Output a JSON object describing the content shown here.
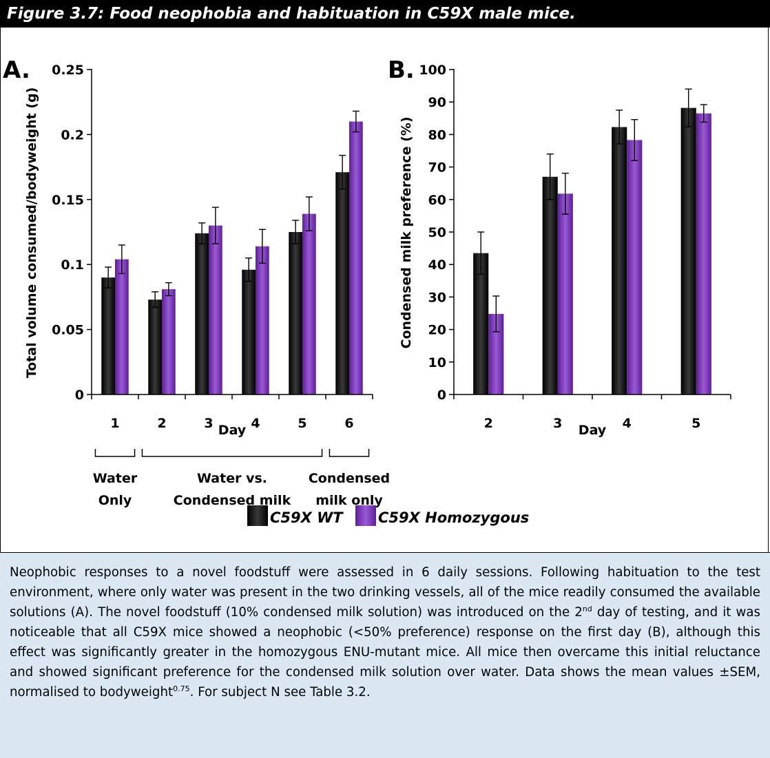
{
  "figure_title": "Figure 3.7: Food neophobia and habituation in C59X male mice.",
  "colors": {
    "wt": "#111111",
    "homozygous": "#7a2fb8",
    "caption_bg": "#dbe8f4"
  },
  "legend": {
    "wt_label": "C59X WT",
    "hom_label": "C59X Homozygous"
  },
  "chart_data": [
    {
      "type": "bar",
      "panel_label": "A.",
      "title": "",
      "xlabel": "Day",
      "ylabel": "Total volume consumed/bodyweight (g)",
      "ylim": [
        0,
        0.25
      ],
      "y_ticks": [
        0,
        0.05,
        0.1,
        0.15,
        0.2,
        0.25
      ],
      "y_tick_labels": [
        "0",
        "0.05",
        "0.1",
        "0.15",
        "0.2",
        "0.25"
      ],
      "categories": [
        "1",
        "2",
        "3",
        "4",
        "5",
        "6"
      ],
      "series": [
        {
          "name": "C59X WT",
          "values": [
            0.09,
            0.073,
            0.124,
            0.096,
            0.125,
            0.171
          ],
          "errors": [
            0.008,
            0.006,
            0.008,
            0.009,
            0.009,
            0.013
          ]
        },
        {
          "name": "C59X Homozygous",
          "values": [
            0.104,
            0.081,
            0.13,
            0.114,
            0.139,
            0.21
          ],
          "errors": [
            0.011,
            0.005,
            0.014,
            0.013,
            0.013,
            0.008
          ]
        }
      ],
      "brackets": [
        {
          "from": 0,
          "to": 0,
          "label_lines": [
            "Water",
            "Only"
          ]
        },
        {
          "from": 1,
          "to": 4,
          "label_lines": [
            "Water vs.",
            "Condensed milk"
          ]
        },
        {
          "from": 5,
          "to": 5,
          "label_lines": [
            "Condensed",
            "milk only"
          ]
        }
      ],
      "grid": false,
      "legend_placement": "bottom"
    },
    {
      "type": "bar",
      "panel_label": "B.",
      "title": "",
      "xlabel": "Day",
      "ylabel": "Condensed milk preference (%)",
      "ylim": [
        0,
        100
      ],
      "y_ticks": [
        0,
        10,
        20,
        30,
        40,
        50,
        60,
        70,
        80,
        90,
        100
      ],
      "y_tick_labels": [
        "0",
        "10",
        "20",
        "30",
        "40",
        "50",
        "60",
        "70",
        "80",
        "90",
        "100"
      ],
      "categories": [
        "2",
        "3",
        "4",
        "5"
      ],
      "series": [
        {
          "name": "C59X WT",
          "values": [
            43.5,
            67.0,
            82.3,
            88.2
          ],
          "errors": [
            6.5,
            7.0,
            5.2,
            5.8
          ]
        },
        {
          "name": "C59X Homozygous",
          "values": [
            24.8,
            61.8,
            78.3,
            86.5
          ],
          "errors": [
            5.5,
            6.3,
            6.3,
            2.7
          ]
        }
      ],
      "grid": false,
      "legend_placement": "bottom"
    }
  ],
  "caption": {
    "part1": "Neophobic responses to a novel foodstuff were assessed in 6 daily sessions. Following habituation to the test environment, where only water was present in the two drinking vessels, all of the mice readily consumed the available solutions (A). The novel foodstuff (10% condensed milk solution) was introduced on the 2",
    "sup1": "nd",
    "part2": " day of testing, and it was noticeable that all C59X mice showed a neophobic (<50% preference) response on the first day (B), although this effect was significantly greater in the homozygous ENU-mutant mice.  All mice then overcame this initial reluctance and showed significant preference for the condensed milk solution over water. Data shows the mean values ±SEM, normalised to bodyweight",
    "sup2": "0.75",
    "part3": ". For subject N see Table 3.2."
  }
}
